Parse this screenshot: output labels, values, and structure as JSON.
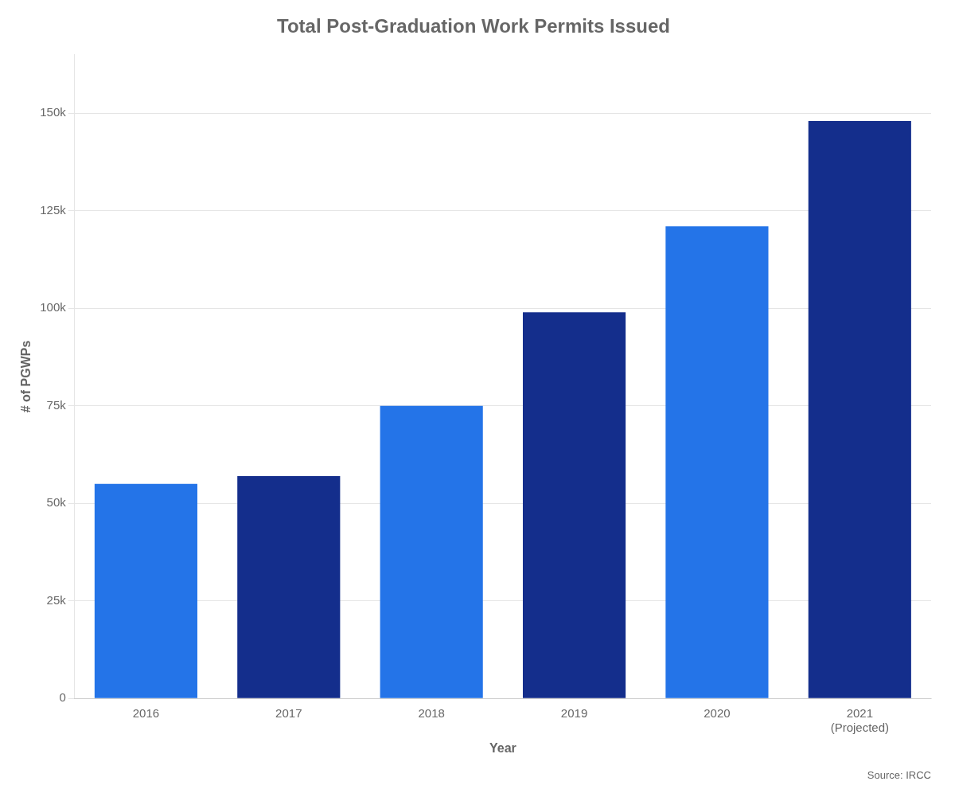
{
  "chart_data": {
    "type": "bar",
    "title": "Total Post-Graduation Work Permits Issued",
    "xlabel": "Year",
    "ylabel": "# of PGWPs",
    "categories": [
      "2016",
      "2017",
      "2018",
      "2019",
      "2020",
      "2021\n(Projected)"
    ],
    "values": [
      55000,
      57000,
      75000,
      99000,
      121000,
      148000
    ],
    "colors": [
      "#2474e8",
      "#142e8c",
      "#2474e8",
      "#142e8c",
      "#2474e8",
      "#142e8c"
    ],
    "ylim": [
      0,
      165000
    ],
    "yticks": [
      0,
      {
        "value": 25000,
        "label": "25k"
      },
      {
        "value": 50000,
        "label": "50k"
      },
      {
        "value": 75000,
        "label": "75k"
      },
      {
        "value": 100000,
        "label": "100k"
      },
      {
        "value": 125000,
        "label": "125k"
      },
      {
        "value": 150000,
        "label": "150k"
      }
    ],
    "grid": true,
    "annotations": [
      "Source: IRCC"
    ]
  }
}
